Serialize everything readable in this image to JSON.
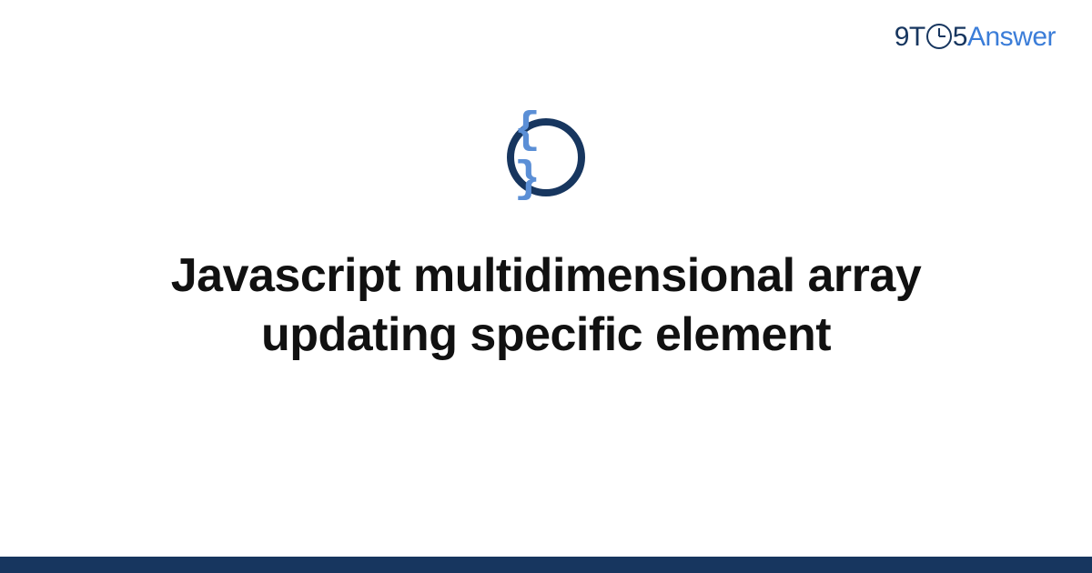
{
  "logo": {
    "part1": "9T",
    "part2": "5",
    "part3": "Answer"
  },
  "icon": {
    "name": "code-braces-icon",
    "glyph": "{ }",
    "ring_color": "#17365f",
    "glyph_color": "#5b8fd6"
  },
  "title": "Javascript multidimensional array updating specific element",
  "colors": {
    "logo_dark": "#17365f",
    "logo_light": "#3b7dd8",
    "title_text": "#111111",
    "bottom_bar": "#17365f",
    "background": "#ffffff"
  }
}
